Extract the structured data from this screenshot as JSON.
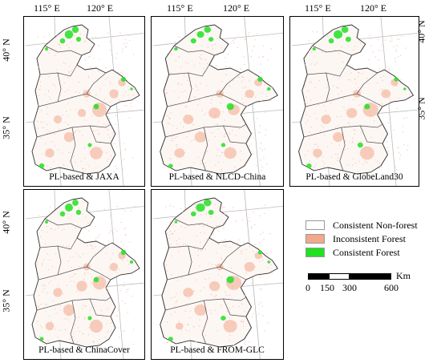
{
  "longitude_labels": [
    "115° E",
    "120° E"
  ],
  "latitude_labels": [
    "40° N",
    "35° N"
  ],
  "panels": [
    {
      "title": "PL-based & JAXA"
    },
    {
      "title": "PL-based & NLCD-China"
    },
    {
      "title": "PL-based & GlobeLand30"
    },
    {
      "title": "PL-based & ChinaCover"
    },
    {
      "title": "PL-based & FROM-GLC"
    }
  ],
  "legend": [
    {
      "label": "Consistent Non-forest",
      "color": "#ffffff"
    },
    {
      "label": "Inconsistent Forest",
      "color": "#f2a88a"
    },
    {
      "label": "Consistent Forest",
      "color": "#22e022"
    }
  ],
  "scale_bar": {
    "unit": "Km",
    "ticks": [
      "0",
      "150",
      "300",
      "600"
    ]
  }
}
